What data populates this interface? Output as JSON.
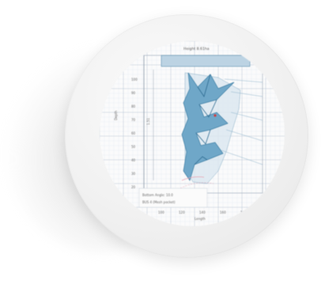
{
  "figure": {
    "top_label": "Height 8.61ha",
    "y_axis_label": "Depth",
    "y_ticks": [
      "100",
      "90",
      "80",
      "70",
      "60",
      "50",
      "40",
      "30",
      "20"
    ],
    "inner_label": "1.51",
    "bottom_label_1": "Bottom Angle: 10.0",
    "bottom_label_2": "BUS 4 (Mesh pocket)",
    "x_ticks": [
      "100",
      "120",
      "140",
      "160",
      "180"
    ],
    "x_axis_label": "Length",
    "colors": {
      "grid_minor": "#dfe6ef",
      "grid_major": "#b9c6d6",
      "net_fill": "#6fa7c8",
      "net_stroke": "#3f7fa5",
      "panel_fill": "#bcd3e3",
      "accent_red": "#d23b3b",
      "accent_pink": "#e8a0b0"
    }
  }
}
